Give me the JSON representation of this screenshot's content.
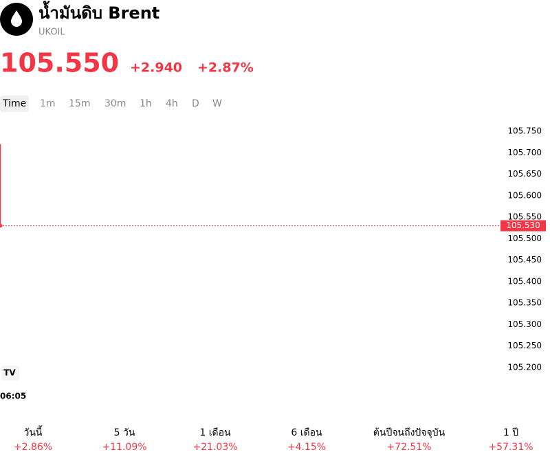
{
  "header": {
    "title": "น้ำมันดิบ Brent",
    "symbol": "UKOIL",
    "price": "105.550",
    "change": "+2.940",
    "change_percent": "+2.87%"
  },
  "intervals": [
    "Time",
    "1m",
    "15m",
    "30m",
    "1h",
    "4h",
    "D",
    "W"
  ],
  "chart": {
    "type": "line",
    "color": "#f23645",
    "x": [
      "06:05"
    ],
    "series": [
      {
        "values": [
          105.72,
          105.53
        ]
      }
    ],
    "last_value": {
      "value": 105.53,
      "label": "105.530"
    },
    "ylim": [
      105.175,
      105.775
    ],
    "yticks": [
      {
        "value": 105.75,
        "label": "105.750"
      },
      {
        "value": 105.7,
        "label": "105.700"
      },
      {
        "value": 105.65,
        "label": "105.650"
      },
      {
        "value": 105.6,
        "label": "105.600"
      },
      {
        "value": 105.55,
        "label": "105.550"
      },
      {
        "value": 105.5,
        "label": "105.500"
      },
      {
        "value": 105.45,
        "label": "105.450"
      },
      {
        "value": 105.4,
        "label": "105.400"
      },
      {
        "value": 105.35,
        "label": "105.350"
      },
      {
        "value": 105.3,
        "label": "105.300"
      },
      {
        "value": 105.25,
        "label": "105.250"
      },
      {
        "value": 105.2,
        "label": "105.200"
      }
    ]
  },
  "performance": [
    {
      "label": "วันนี้",
      "value": "+2.86%"
    },
    {
      "label": "5 วัน",
      "value": "+11.09%"
    },
    {
      "label": "1 เดือน",
      "value": "+21.03%"
    },
    {
      "label": "6 เดือน",
      "value": "+4.15%"
    },
    {
      "label": "ต้นปีจนถึงปัจจุบัน",
      "value": "+72.51%"
    },
    {
      "label": "1 ปี",
      "value": "+57.31%"
    }
  ]
}
